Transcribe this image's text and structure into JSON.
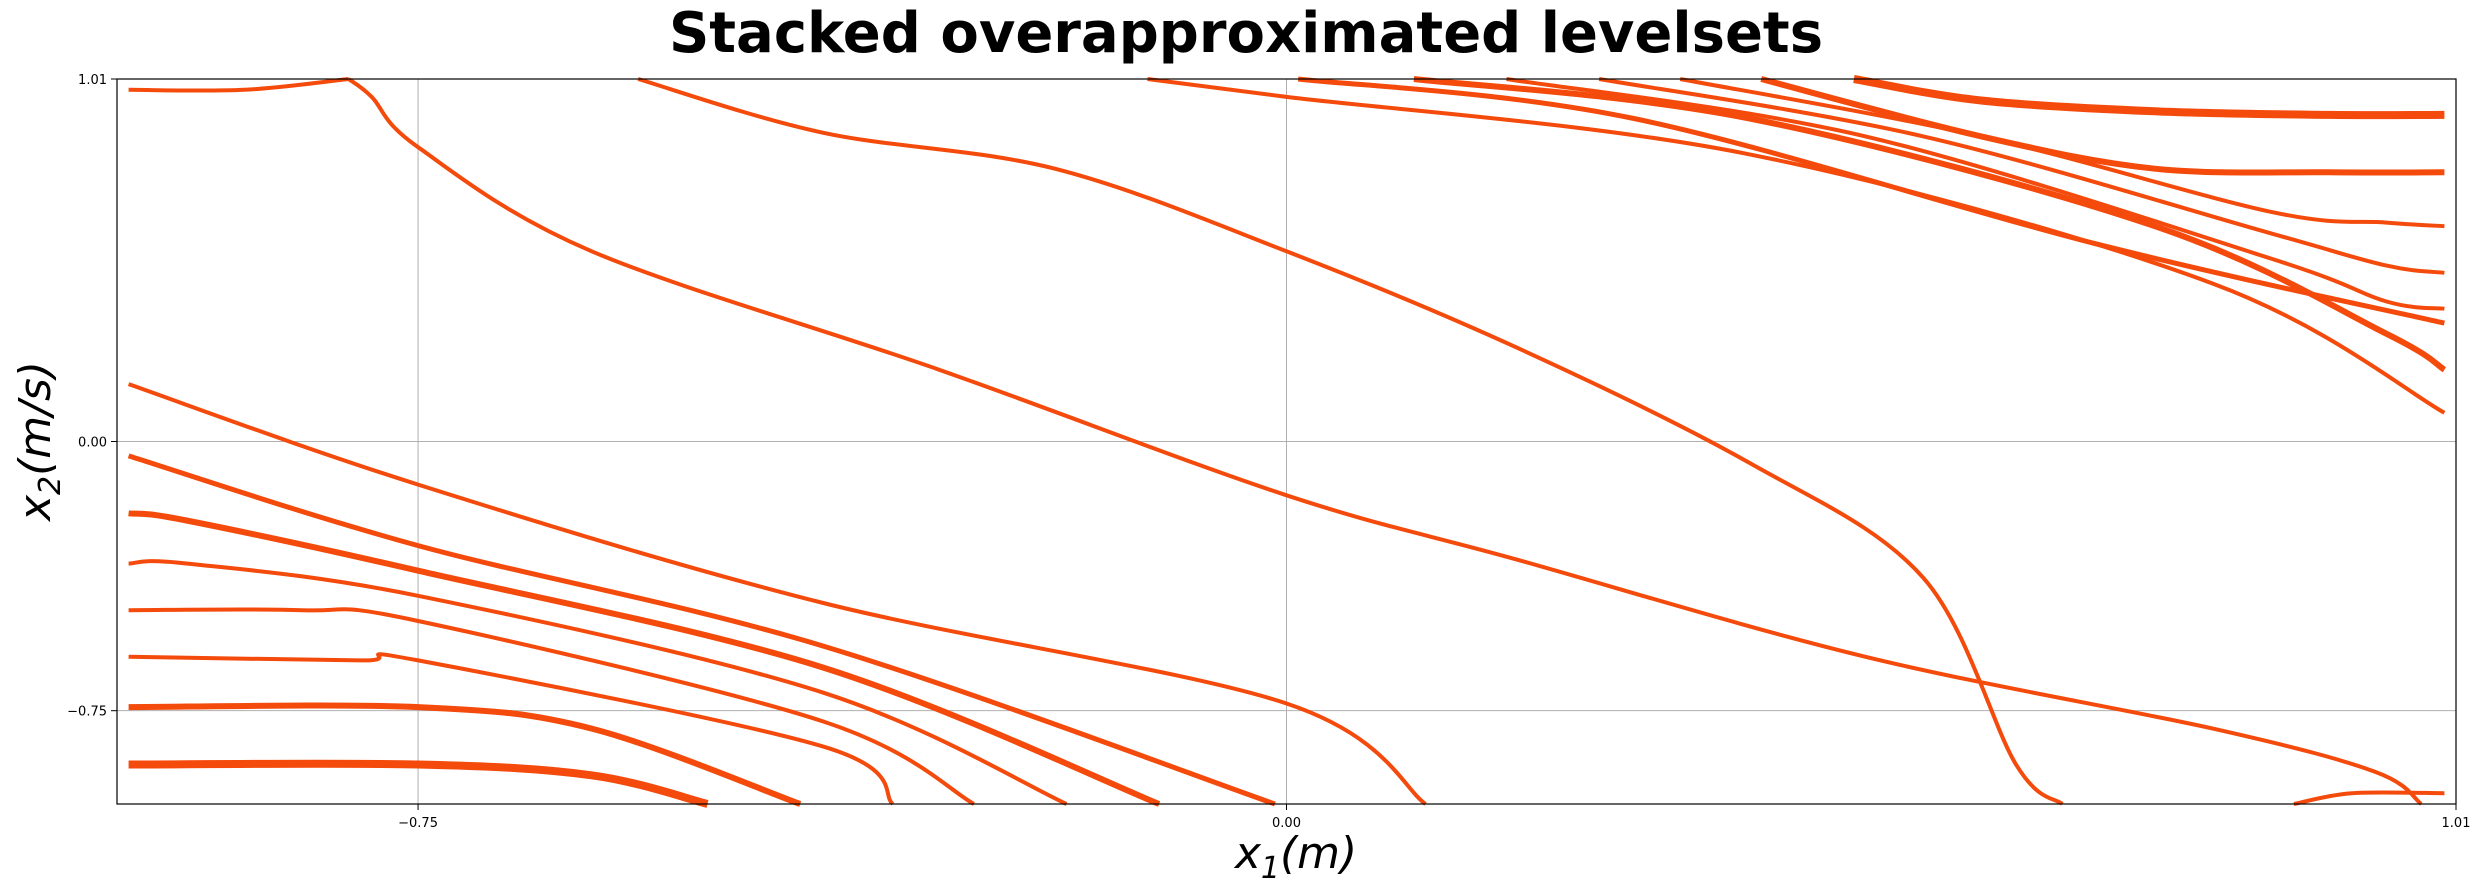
{
  "chart_data": {
    "type": "line",
    "title": "Stacked overapproximated levelsets",
    "xlabel": "x_1(m)",
    "ylabel": "x_2(m/s)",
    "xlim": [
      -1.01,
      1.01
    ],
    "ylim": [
      -1.01,
      1.01
    ],
    "xticks": [
      -0.75,
      0.0,
      1.01
    ],
    "xtick_labels": [
      "−0.75",
      "0.00",
      "1.01"
    ],
    "yticks": [
      -0.75,
      0.0,
      1.01
    ],
    "ytick_labels": [
      "−0.75",
      "0.00",
      "1.01"
    ],
    "grid": true,
    "line_color": "#f44a0c",
    "series": [
      {
        "width": 4,
        "points": [
          [
            -0.56,
            1.01
          ],
          [
            -0.4,
            0.86
          ],
          [
            -0.2,
            0.76
          ],
          [
            0.0,
            0.53
          ],
          [
            0.2,
            0.26
          ],
          [
            0.4,
            -0.06
          ],
          [
            0.55,
            -0.38
          ],
          [
            0.63,
            -0.9
          ],
          [
            0.67,
            -1.01
          ]
        ]
      },
      {
        "width": 4,
        "points": [
          [
            -0.81,
            1.01
          ],
          [
            -0.79,
            0.96
          ],
          [
            -0.75,
            0.82
          ],
          [
            -0.6,
            0.53
          ],
          [
            -0.3,
            0.2
          ],
          [
            0.0,
            -0.15
          ],
          [
            0.2,
            -0.33
          ],
          [
            0.5,
            -0.6
          ],
          [
            0.8,
            -0.8
          ],
          [
            0.94,
            -0.92
          ],
          [
            0.98,
            -1.01
          ]
        ]
      },
      {
        "width": 4,
        "points": [
          [
            -1.0,
            0.16
          ],
          [
            -0.75,
            -0.12
          ],
          [
            -0.4,
            -0.45
          ],
          [
            0.0,
            -0.73
          ],
          [
            0.12,
            -1.01
          ]
        ]
      },
      {
        "width": 4,
        "points": [
          [
            -0.12,
            1.01
          ],
          [
            0.0,
            0.96
          ],
          [
            0.4,
            0.8
          ],
          [
            0.8,
            0.44
          ],
          [
            1.0,
            0.08
          ]
        ]
      },
      {
        "width": 5,
        "points": [
          [
            -1.0,
            -0.04
          ],
          [
            -0.75,
            -0.29
          ],
          [
            -0.4,
            -0.57
          ],
          [
            -0.01,
            -1.01
          ]
        ]
      },
      {
        "width": 5,
        "points": [
          [
            0.01,
            1.01
          ],
          [
            0.3,
            0.9
          ],
          [
            0.7,
            0.55
          ],
          [
            1.0,
            0.33
          ]
        ]
      },
      {
        "width": 6,
        "points": [
          [
            -1.0,
            -0.2
          ],
          [
            -0.95,
            -0.22
          ],
          [
            -0.75,
            -0.36
          ],
          [
            -0.4,
            -0.63
          ],
          [
            -0.11,
            -1.01
          ]
        ]
      },
      {
        "width": 6,
        "points": [
          [
            0.11,
            1.01
          ],
          [
            0.4,
            0.9
          ],
          [
            0.75,
            0.6
          ],
          [
            0.95,
            0.3
          ],
          [
            1.0,
            0.2
          ]
        ]
      },
      {
        "width": 4,
        "points": [
          [
            -1.0,
            -0.34
          ],
          [
            -0.95,
            -0.34
          ],
          [
            -0.75,
            -0.43
          ],
          [
            -0.4,
            -0.7
          ],
          [
            -0.19,
            -1.01
          ]
        ]
      },
      {
        "width": 4,
        "points": [
          [
            0.19,
            1.01
          ],
          [
            0.5,
            0.85
          ],
          [
            0.85,
            0.51
          ],
          [
            0.95,
            0.39
          ],
          [
            1.0,
            0.37
          ]
        ]
      },
      {
        "width": 4,
        "points": [
          [
            -1.0,
            -0.47
          ],
          [
            -0.85,
            -0.47
          ],
          [
            -0.75,
            -0.5
          ],
          [
            -0.4,
            -0.78
          ],
          [
            -0.27,
            -1.01
          ]
        ]
      },
      {
        "width": 4,
        "points": [
          [
            0.27,
            1.01
          ],
          [
            0.55,
            0.85
          ],
          [
            0.85,
            0.58
          ],
          [
            0.95,
            0.49
          ],
          [
            1.0,
            0.47
          ]
        ]
      },
      {
        "width": 4,
        "points": [
          [
            -1.0,
            -0.6
          ],
          [
            -0.8,
            -0.61
          ],
          [
            -0.75,
            -0.61
          ],
          [
            -0.4,
            -0.85
          ],
          [
            -0.34,
            -1.01
          ]
        ]
      },
      {
        "width": 4,
        "points": [
          [
            0.34,
            1.01
          ],
          [
            0.6,
            0.85
          ],
          [
            0.85,
            0.64
          ],
          [
            0.95,
            0.61
          ],
          [
            1.0,
            0.6
          ]
        ]
      },
      {
        "width": 6,
        "points": [
          [
            -1.0,
            -0.74
          ],
          [
            -0.75,
            -0.74
          ],
          [
            -0.6,
            -0.8
          ],
          [
            -0.42,
            -1.01
          ]
        ]
      },
      {
        "width": 6,
        "points": [
          [
            0.41,
            1.01
          ],
          [
            0.6,
            0.85
          ],
          [
            0.75,
            0.76
          ],
          [
            0.9,
            0.75
          ],
          [
            1.0,
            0.75
          ]
        ]
      },
      {
        "width": 8,
        "points": [
          [
            -1.0,
            -0.9
          ],
          [
            -0.75,
            -0.9
          ],
          [
            -0.6,
            -0.93
          ],
          [
            -0.5,
            -1.01
          ]
        ]
      },
      {
        "width": 8,
        "points": [
          [
            0.49,
            1.01
          ],
          [
            0.6,
            0.95
          ],
          [
            0.75,
            0.92
          ],
          [
            0.9,
            0.91
          ],
          [
            1.0,
            0.91
          ]
        ]
      },
      {
        "width": 4,
        "points": [
          [
            -1.0,
            0.98
          ],
          [
            -0.9,
            0.98
          ],
          [
            -0.81,
            1.01
          ]
        ]
      },
      {
        "width": 4,
        "points": [
          [
            0.87,
            -1.01
          ],
          [
            0.92,
            -0.98
          ],
          [
            1.0,
            -0.98
          ]
        ]
      }
    ]
  }
}
